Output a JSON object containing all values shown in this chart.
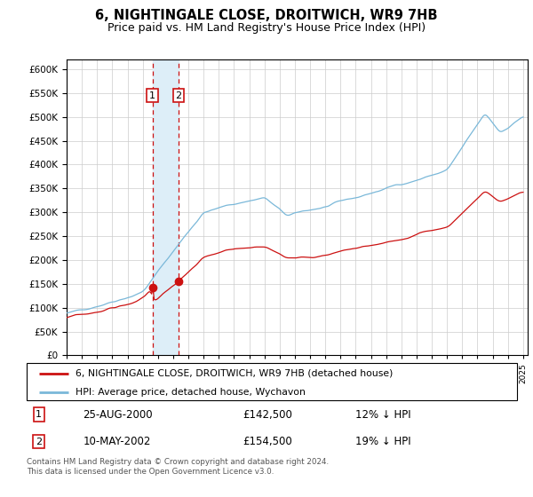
{
  "title": "6, NIGHTINGALE CLOSE, DROITWICH, WR9 7HB",
  "subtitle": "Price paid vs. HM Land Registry's House Price Index (HPI)",
  "legend_line1": "6, NIGHTINGALE CLOSE, DROITWICH, WR9 7HB (detached house)",
  "legend_line2": "HPI: Average price, detached house, Wychavon",
  "transaction1_date": "25-AUG-2000",
  "transaction1_price": "£142,500",
  "transaction1_hpi": "12% ↓ HPI",
  "transaction2_date": "10-MAY-2002",
  "transaction2_price": "£154,500",
  "transaction2_hpi": "19% ↓ HPI",
  "footnote": "Contains HM Land Registry data © Crown copyright and database right 2024.\nThis data is licensed under the Open Government Licence v3.0.",
  "hpi_color": "#7ab8d9",
  "price_color": "#cc1111",
  "marker_color": "#cc1111",
  "shade_color": "#ddeef8",
  "grid_color": "#cccccc",
  "ylim": [
    0,
    620000
  ],
  "yticks": [
    0,
    50000,
    100000,
    150000,
    200000,
    250000,
    300000,
    350000,
    400000,
    450000,
    500000,
    550000,
    600000
  ],
  "year_start": 1995,
  "year_end": 2025,
  "transaction1_year": 2000.65,
  "transaction2_year": 2002.36
}
